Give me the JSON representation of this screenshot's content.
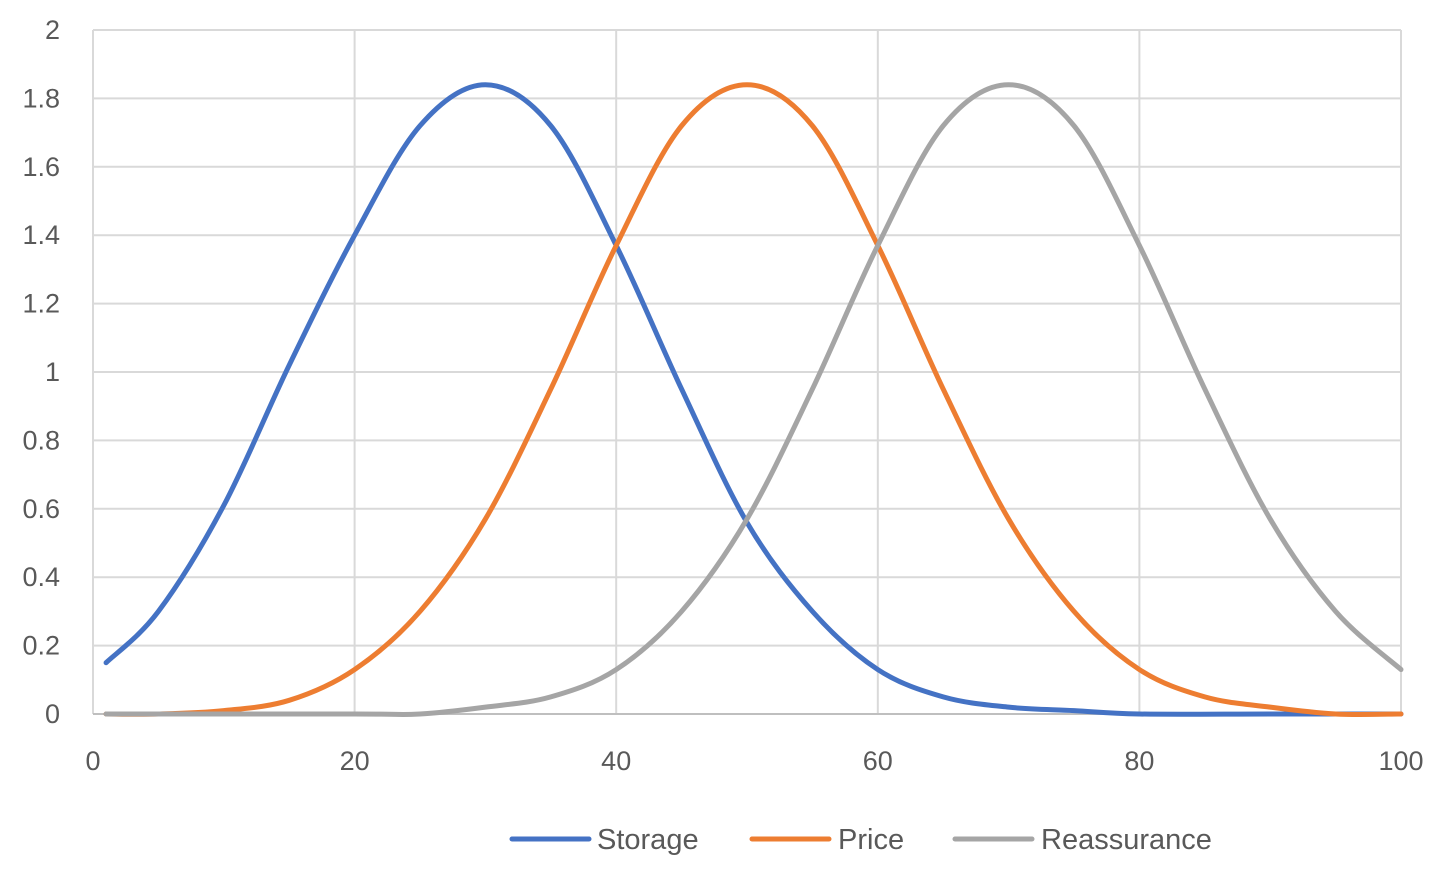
{
  "chart_data": {
    "type": "line",
    "title": "",
    "xlabel": "",
    "ylabel": "",
    "xlim": [
      0,
      100
    ],
    "ylim": [
      0,
      2
    ],
    "x_ticks": [
      "0",
      "20",
      "40",
      "60",
      "80",
      "100"
    ],
    "y_ticks": [
      "0",
      "0.2",
      "0.4",
      "0.6",
      "0.8",
      "1",
      "1.2",
      "1.4",
      "1.6",
      "1.8",
      "2"
    ],
    "grid": true,
    "legend_position": "bottom",
    "series": [
      {
        "name": "Storage",
        "color": "#4472C4",
        "points": [
          [
            1,
            0.15
          ],
          [
            5,
            0.3
          ],
          [
            10,
            0.61
          ],
          [
            15,
            1.02
          ],
          [
            20,
            1.4
          ],
          [
            25,
            1.72
          ],
          [
            30,
            1.84
          ],
          [
            35,
            1.72
          ],
          [
            40,
            1.37
          ],
          [
            45,
            0.95
          ],
          [
            50,
            0.56
          ],
          [
            55,
            0.3
          ],
          [
            60,
            0.13
          ],
          [
            65,
            0.05
          ],
          [
            70,
            0.02
          ],
          [
            75,
            0.01
          ],
          [
            80,
            0.0
          ],
          [
            90,
            0.0
          ],
          [
            100,
            0.0
          ]
        ]
      },
      {
        "name": "Price",
        "color": "#ED7D31",
        "points": [
          [
            1,
            0.0
          ],
          [
            5,
            0.0
          ],
          [
            10,
            0.01
          ],
          [
            15,
            0.04
          ],
          [
            20,
            0.13
          ],
          [
            25,
            0.3
          ],
          [
            30,
            0.57
          ],
          [
            35,
            0.95
          ],
          [
            40,
            1.37
          ],
          [
            45,
            1.72
          ],
          [
            50,
            1.84
          ],
          [
            55,
            1.72
          ],
          [
            60,
            1.37
          ],
          [
            65,
            0.95
          ],
          [
            70,
            0.57
          ],
          [
            75,
            0.3
          ],
          [
            80,
            0.13
          ],
          [
            85,
            0.05
          ],
          [
            90,
            0.02
          ],
          [
            95,
            0.0
          ],
          [
            100,
            0.0
          ]
        ]
      },
      {
        "name": "Reassurance",
        "color": "#A5A5A5",
        "points": [
          [
            1,
            0.0
          ],
          [
            20,
            0.0
          ],
          [
            25,
            0.0
          ],
          [
            30,
            0.02
          ],
          [
            35,
            0.05
          ],
          [
            40,
            0.13
          ],
          [
            45,
            0.3
          ],
          [
            50,
            0.57
          ],
          [
            55,
            0.95
          ],
          [
            60,
            1.37
          ],
          [
            65,
            1.72
          ],
          [
            70,
            1.84
          ],
          [
            75,
            1.72
          ],
          [
            80,
            1.37
          ],
          [
            85,
            0.95
          ],
          [
            90,
            0.57
          ],
          [
            95,
            0.3
          ],
          [
            100,
            0.13
          ]
        ]
      }
    ]
  }
}
